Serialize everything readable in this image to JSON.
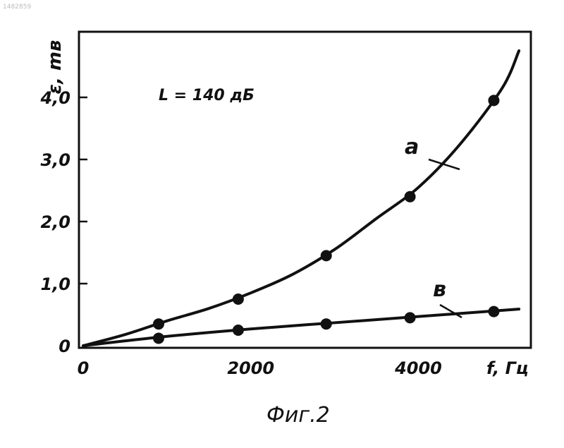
{
  "corner_id": "1482859",
  "caption": "Фиг.2",
  "chart_data": {
    "type": "line",
    "annotation": "L = 140 дБ",
    "xlabel": "f, Гц",
    "ylabel": "ε, mв",
    "xlim": [
      0,
      5300
    ],
    "ylim": [
      0,
      5.0
    ],
    "x_ticks": [
      0,
      2000,
      4000
    ],
    "x_tick_labels": [
      "0",
      "2000",
      "4000"
    ],
    "y_ticks": [
      0,
      1.0,
      2.0,
      3.0,
      4.0
    ],
    "y_tick_labels": [
      "0",
      "1,0",
      "2,0",
      "3,0",
      "4,0"
    ],
    "grid": false,
    "series": [
      {
        "name": "a",
        "x": [
          900,
          1850,
          2900,
          3900,
          4900
        ],
        "y": [
          0.35,
          0.75,
          1.45,
          2.4,
          3.95
        ],
        "curve_x": [
          0,
          500,
          1000,
          1500,
          2000,
          2500,
          3000,
          3500,
          4000,
          4500,
          5000,
          5200
        ],
        "curve_y": [
          0,
          0.18,
          0.4,
          0.6,
          0.85,
          1.15,
          1.55,
          2.05,
          2.55,
          3.25,
          4.15,
          4.75
        ]
      },
      {
        "name": "в",
        "x": [
          900,
          1850,
          2900,
          3900,
          4900
        ],
        "y": [
          0.12,
          0.25,
          0.35,
          0.45,
          0.55
        ],
        "curve_x": [
          0,
          1000,
          2000,
          3000,
          4000,
          5000,
          5200
        ],
        "curve_y": [
          0,
          0.15,
          0.27,
          0.37,
          0.47,
          0.57,
          0.59
        ]
      }
    ]
  }
}
